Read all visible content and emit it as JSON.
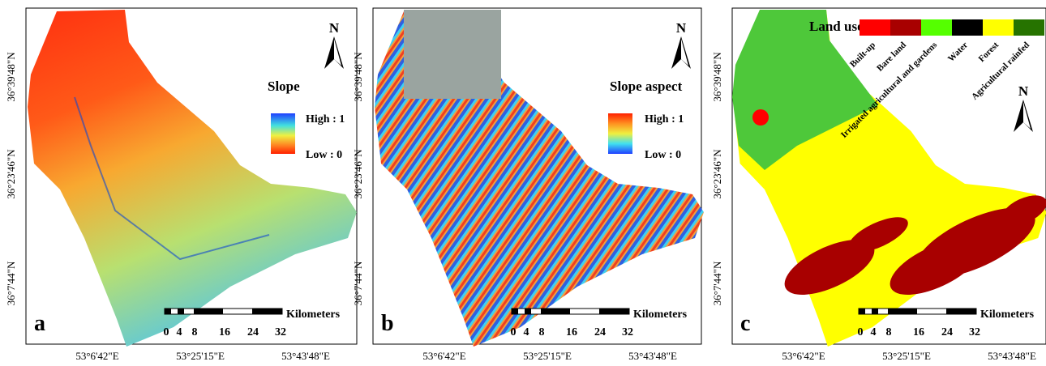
{
  "panels": [
    {
      "letter": "a",
      "lat_labels": [
        "36°39'48\"N",
        "36°23'46\"N",
        "36°7'44\"N"
      ],
      "lon_labels": [
        "53°6'42\"E",
        "53°25'15\"E",
        "53°43'48\"E"
      ],
      "north": "N",
      "legend": {
        "title": "Slope",
        "high": "High : 1",
        "low": "Low : 0"
      },
      "scale": {
        "ticks": [
          0,
          4,
          8,
          16,
          24,
          32
        ],
        "unit": "Kilometers"
      }
    },
    {
      "letter": "b",
      "lat_labels": [
        "36°39'48\"N",
        "36°23'46\"N",
        "36°7'44\"N"
      ],
      "lon_labels": [
        "53°6'42\"E",
        "53°25'15\"E",
        "53°43'48\"E"
      ],
      "north": "N",
      "legend": {
        "title": "Slope aspect",
        "high": "High : 1",
        "low": "Low : 0"
      },
      "scale": {
        "ticks": [
          0,
          4,
          8,
          16,
          24,
          32
        ],
        "unit": "Kilometers"
      }
    },
    {
      "letter": "c",
      "lat_labels": [
        "36°39'48\"N",
        "36°23'46\"N",
        "36°7'44\"N"
      ],
      "lon_labels": [
        "53°6'42\"E",
        "53°25'15\"E",
        "53°43'48\"E"
      ],
      "north": "N",
      "legend": {
        "title": "Land use",
        "classes": [
          {
            "name": "Built-up",
            "color": "#ff0000"
          },
          {
            "name": "Bare land",
            "color": "#a80000"
          },
          {
            "name": "Irrigated agricultural and gardens",
            "color": "#55ff00"
          },
          {
            "name": "Water",
            "color": "#000000"
          },
          {
            "name": "Forest",
            "color": "#ffff00"
          },
          {
            "name": "Agricultural rainfed",
            "color": "#267300"
          }
        ]
      },
      "scale": {
        "ticks": [
          0,
          4,
          8,
          16,
          24,
          32
        ],
        "unit": "Kilometers"
      }
    }
  ]
}
